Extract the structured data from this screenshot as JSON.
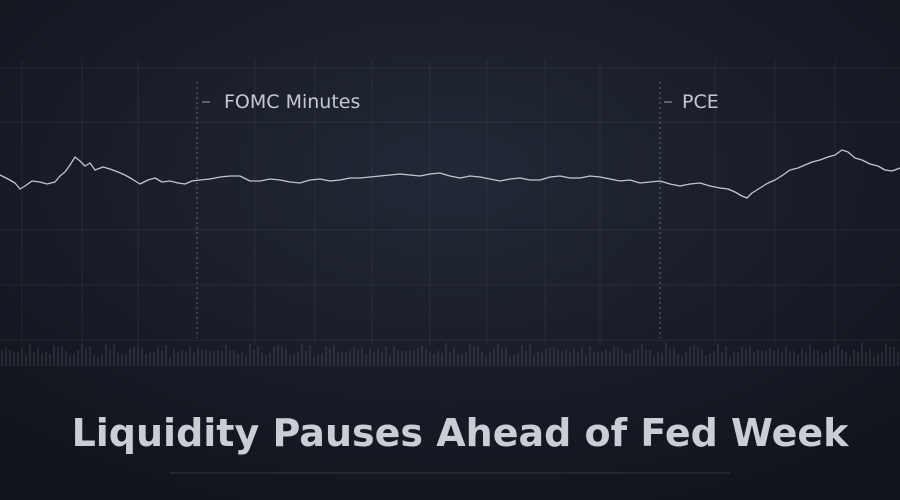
{
  "annotations": [
    "FOMC Minutes",
    "PCE"
  ],
  "title": "Liquidity Pauses Ahead of Fed Week"
}
